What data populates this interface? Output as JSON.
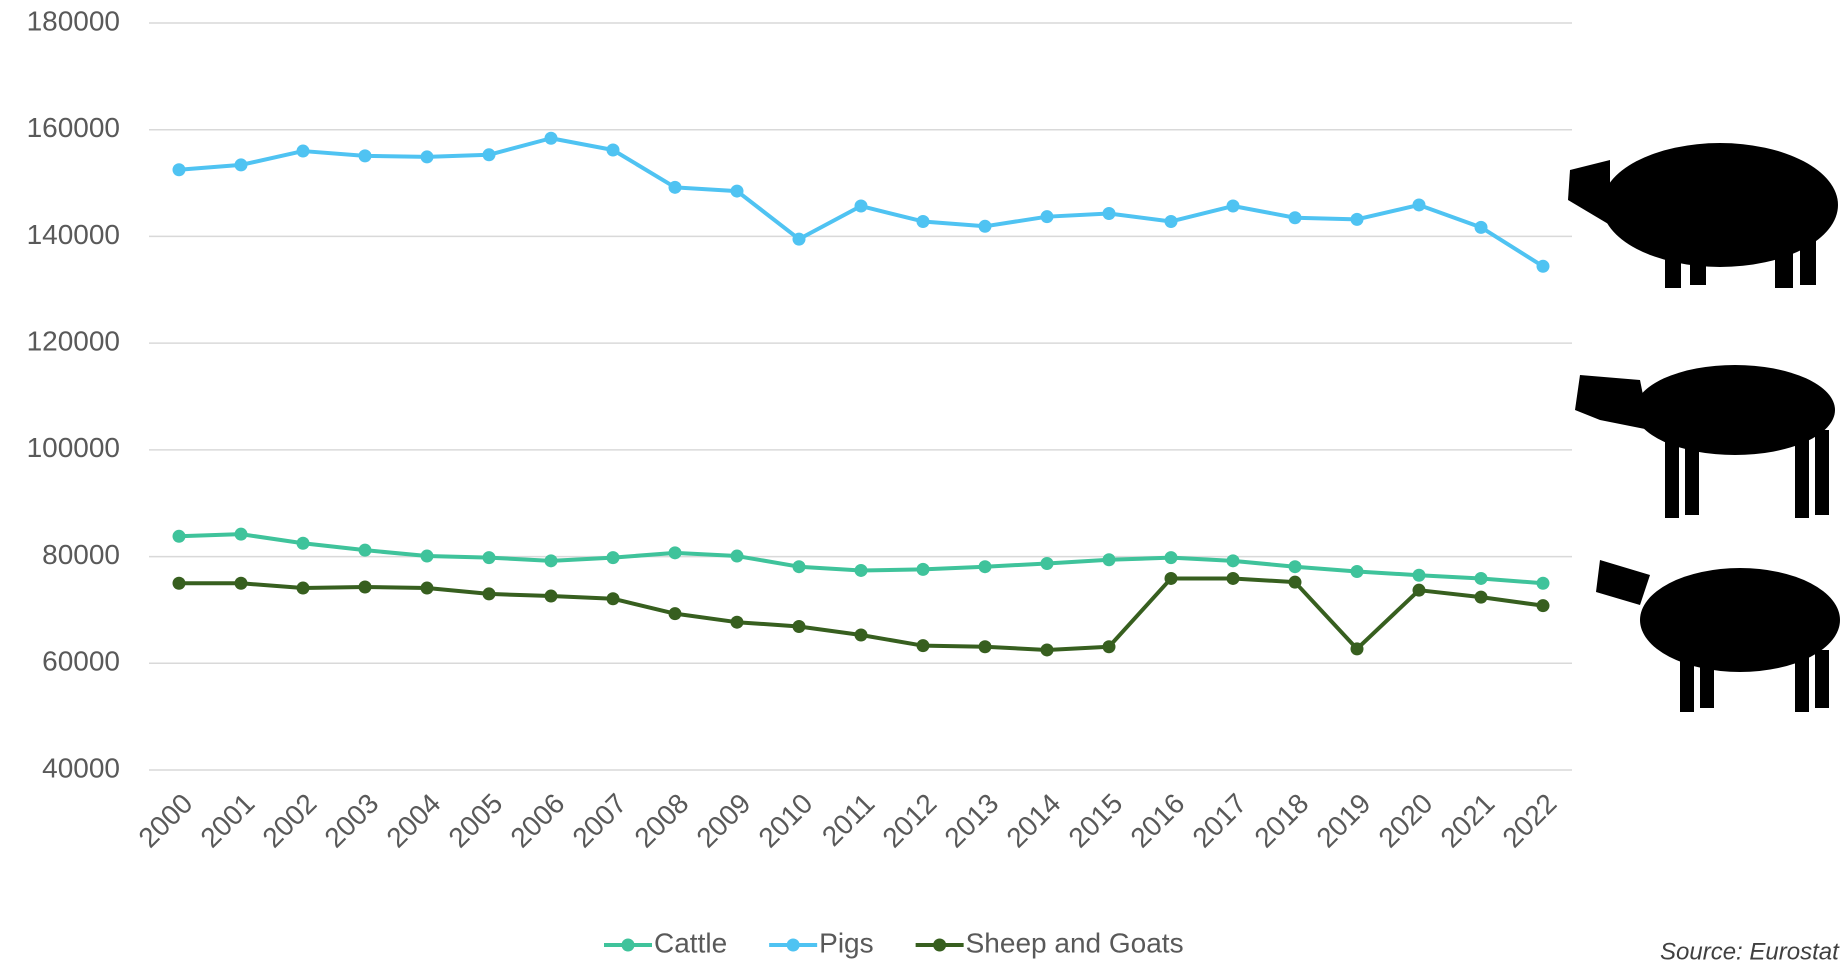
{
  "chart_data": {
    "type": "line",
    "x": [
      "2000",
      "2001",
      "2002",
      "2003",
      "2004",
      "2005",
      "2006",
      "2007",
      "2008",
      "2009",
      "2010",
      "2011",
      "2012",
      "2013",
      "2014",
      "2015",
      "2016",
      "2017",
      "2018",
      "2019",
      "2020",
      "2021",
      "2022"
    ],
    "series": [
      {
        "name": "Cattle",
        "color": "#3fc39b",
        "values": [
          83800,
          84200,
          82500,
          81200,
          80100,
          79800,
          79200,
          79800,
          80700,
          80100,
          78100,
          77400,
          77600,
          78100,
          78700,
          79400,
          79800,
          79200,
          78100,
          77200,
          76500,
          75900,
          75000
        ]
      },
      {
        "name": "Pigs",
        "color": "#4fc3f2",
        "values": [
          152500,
          153400,
          156000,
          155100,
          154900,
          155300,
          158400,
          156200,
          149200,
          148500,
          139500,
          145700,
          142800,
          141900,
          143700,
          144300,
          142800,
          145700,
          143500,
          143200,
          145900,
          141700,
          134400
        ]
      },
      {
        "name": "Sheep and Goats",
        "color": "#375f1f",
        "values": [
          75000,
          75000,
          74100,
          74300,
          74100,
          73000,
          72600,
          72100,
          69300,
          67700,
          66900,
          65300,
          63300,
          63100,
          62500,
          63100,
          75900,
          75900,
          75200,
          62700,
          73700,
          72400,
          70800
        ]
      }
    ],
    "ylim": [
      40000,
      180000
    ],
    "yticks": [
      40000,
      60000,
      80000,
      100000,
      120000,
      140000,
      160000,
      180000
    ],
    "grid": true,
    "legend": "bottom",
    "source": "Source: Eurostat"
  }
}
